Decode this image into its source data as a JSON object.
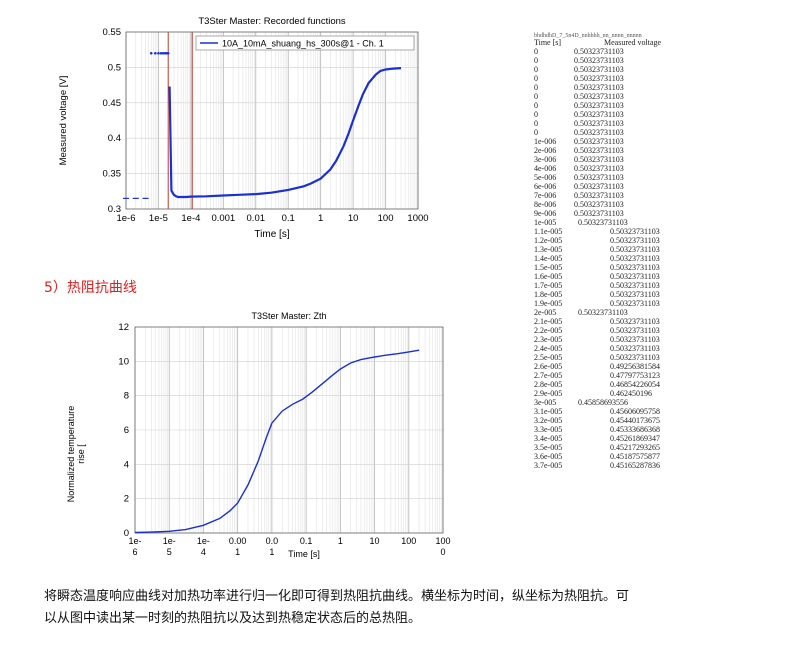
{
  "chart_data": [
    {
      "type": "line",
      "title": "T3Ster Master: Recorded functions",
      "xlabel": "Time [s]",
      "ylabel": "Measured voltage [V]",
      "x_scale": "log",
      "xlim": [
        1e-06,
        1000
      ],
      "ylim": [
        0.3,
        0.55
      ],
      "x_ticks": [
        "1e-6",
        "1e-5",
        "1e-4",
        "0.001",
        "0.01",
        "0.1",
        "1",
        "10",
        "100",
        "1000"
      ],
      "y_ticks": [
        "0.3",
        "0.35",
        "0.4",
        "0.45",
        "0.5",
        "0.55"
      ],
      "grid": true,
      "legend": "top-right",
      "series": [
        {
          "name": "10A_10mA_shuang_hs_300s@1 - Ch. 1",
          "color": "#1a2fd6",
          "x": [
            1e-06,
            2e-06,
            4e-06,
            6e-06,
            8e-06,
            1e-05,
            1.2e-05,
            1.4e-05,
            1.6e-05,
            1.8e-05,
            2e-05,
            2.2e-05,
            2.5e-05,
            2.8e-05,
            3e-05,
            3.5e-05,
            4e-05,
            5e-05,
            7e-05,
            0.0001,
            0.0003,
            0.001,
            0.003,
            0.01,
            0.03,
            0.1,
            0.3,
            0.5,
            1,
            2,
            3,
            5,
            7,
            10,
            15,
            20,
            30,
            50,
            70,
            100,
            150,
            200,
            300
          ],
          "y": [
            0.315,
            0.315,
            0.315,
            0.52,
            0.52,
            0.52,
            0.52,
            0.52,
            0.52,
            0.52,
            0.52,
            0.473,
            0.326,
            0.322,
            0.32,
            0.318,
            0.317,
            0.317,
            0.317,
            0.3175,
            0.318,
            0.319,
            0.32,
            0.321,
            0.323,
            0.327,
            0.332,
            0.336,
            0.343,
            0.356,
            0.368,
            0.388,
            0.405,
            0.425,
            0.447,
            0.462,
            0.478,
            0.49,
            0.495,
            0.497,
            0.498,
            0.4985,
            0.499
          ]
        }
      ]
    },
    {
      "type": "line",
      "title": "T3Ster Master: Zth",
      "xlabel": "Time [s]",
      "ylabel": "Normalized temperature rise [",
      "x_scale": "log",
      "xlim": [
        1e-06,
        1000
      ],
      "ylim": [
        0,
        12
      ],
      "x_ticks_top": [
        "1e-",
        "1e-",
        "1e-",
        "0.00",
        "0.0",
        "0.1",
        "1",
        "10",
        "100",
        "100"
      ],
      "x_ticks_bottom": [
        "6",
        "5",
        "4",
        "1",
        "1",
        "",
        "",
        "",
        "",
        "0"
      ],
      "y_ticks": [
        "0",
        "2",
        "4",
        "6",
        "8",
        "10",
        "12"
      ],
      "grid": true,
      "series": [
        {
          "color": "#1a2fd6",
          "x": [
            1e-06,
            3e-06,
            1e-05,
            3e-05,
            0.0001,
            0.0003,
            0.0006,
            0.001,
            0.002,
            0.004,
            0.007,
            0.01,
            0.02,
            0.04,
            0.08,
            0.15,
            0.3,
            0.6,
            1,
            2,
            4,
            7,
            10,
            20,
            50,
            100,
            200
          ],
          "y": [
            0.03,
            0.05,
            0.1,
            0.2,
            0.45,
            0.85,
            1.3,
            1.75,
            2.8,
            4.2,
            5.6,
            6.4,
            7.1,
            7.5,
            7.8,
            8.2,
            8.7,
            9.2,
            9.55,
            9.9,
            10.1,
            10.2,
            10.25,
            10.35,
            10.45,
            10.55,
            10.65
          ]
        }
      ]
    }
  ],
  "section_heading": "5）热阻抗曲线",
  "caption_line1": "将瞬态温度响应曲线对加热功率进行归一化即可得到热阻抗曲线。横坐标为时间，纵坐标为热阻抗。可",
  "caption_line2": "以从图中读出某一时刻的热阻抗以及达到热稳定状态后的总热阻。",
  "table": {
    "header_cut": "bhdhdhD_7_5n4D_nnhhhh_nn_nnnn_nnnnn",
    "col1": "Time [s]",
    "col2": "Measured voltage",
    "rows": [
      [
        "0",
        "0.50323731103"
      ],
      [
        "0",
        "0.50323731103"
      ],
      [
        "0",
        "0.50323731103"
      ],
      [
        "0",
        "0.50323731103"
      ],
      [
        "0",
        "0.50323731103"
      ],
      [
        "0",
        "0.50323731103"
      ],
      [
        "0",
        "0.50323731103"
      ],
      [
        "0",
        "0.50323731103"
      ],
      [
        "0",
        "0.50323731103"
      ],
      [
        "0",
        "0.50323731103"
      ],
      [
        "1e-006",
        "0.50323731103"
      ],
      [
        "2e-006",
        "0.50323731103"
      ],
      [
        "3e-006",
        "0.50323731103"
      ],
      [
        "4e-006",
        "0.50323731103"
      ],
      [
        "5e-006",
        "0.50323731103"
      ],
      [
        "6e-006",
        "0.50323731103"
      ],
      [
        "7e-006",
        "0.50323731103"
      ],
      [
        "8e-006",
        "0.50323731103"
      ],
      [
        "9e-006",
        "0.50323731103"
      ],
      [
        "1e-005",
        "0.50323731103"
      ],
      [
        "1.1e-005",
        "0.50323731103"
      ],
      [
        "1.2e-005",
        "0.50323731103"
      ],
      [
        "1.3e-005",
        "0.50323731103"
      ],
      [
        "1.4e-005",
        "0.50323731103"
      ],
      [
        "1.5e-005",
        "0.50323731103"
      ],
      [
        "1.6e-005",
        "0.50323731103"
      ],
      [
        "1.7e-005",
        "0.50323731103"
      ],
      [
        "1.8e-005",
        "0.50323731103"
      ],
      [
        "1.9e-005",
        "0.50323731103"
      ],
      [
        "2e-005",
        "0.50323731103"
      ],
      [
        "2.1e-005",
        "0.50323731103"
      ],
      [
        "2.2e-005",
        "0.50323731103"
      ],
      [
        "2.3e-005",
        "0.50323731103"
      ],
      [
        "2.4e-005",
        "0.50323731103"
      ],
      [
        "2.5e-005",
        "0.50323731103"
      ],
      [
        "2.6e-005",
        "0.49256381584"
      ],
      [
        "2.7e-005",
        "0.47797753123"
      ],
      [
        "2.8e-005",
        "0.46854226054"
      ],
      [
        "2.9e-005",
        "0.462450196"
      ],
      [
        "3e-005",
        "0.45858693556"
      ],
      [
        "3.1e-005",
        "0.45606095758"
      ],
      [
        "3.2e-005",
        "0.45440173675"
      ],
      [
        "3.3e-005",
        "0.45333686368"
      ],
      [
        "3.4e-005",
        "0.45261869347"
      ],
      [
        "3.5e-005",
        "0.45217293265"
      ],
      [
        "3.6e-005",
        "0.45187575877"
      ],
      [
        "3.7e-005",
        "0.45165287836"
      ]
    ]
  }
}
